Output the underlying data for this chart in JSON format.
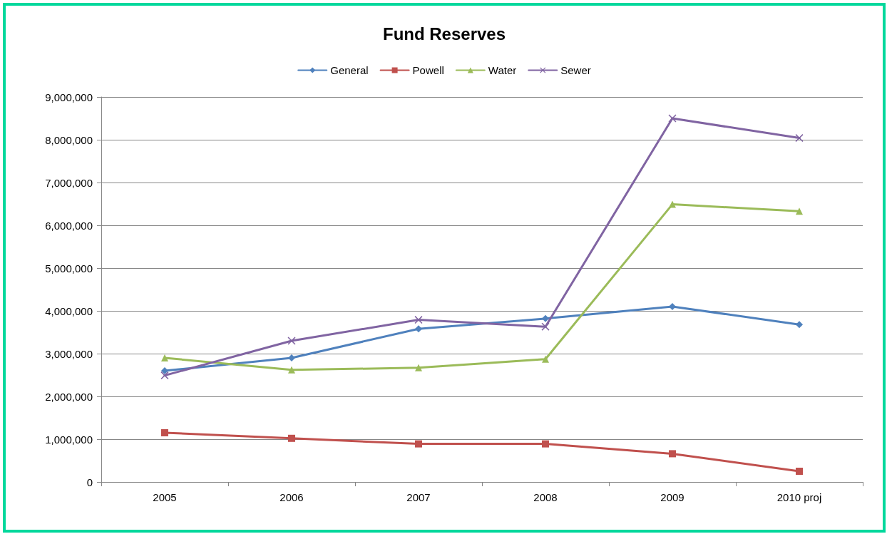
{
  "chart_data": {
    "type": "line",
    "title": "Fund Reserves",
    "categories": [
      "2005",
      "2006",
      "2007",
      "2008",
      "2009",
      "2010 proj"
    ],
    "series": [
      {
        "name": "General",
        "color": "#4f81bd",
        "marker": "diamond",
        "values": [
          2600000,
          2900000,
          3580000,
          3820000,
          4100000,
          3680000
        ]
      },
      {
        "name": "Powell",
        "color": "#c0504d",
        "marker": "square",
        "values": [
          1150000,
          1020000,
          890000,
          890000,
          660000,
          250000
        ]
      },
      {
        "name": "Water",
        "color": "#9bbb59",
        "marker": "triangle",
        "values": [
          2900000,
          2620000,
          2670000,
          2870000,
          6490000,
          6330000
        ]
      },
      {
        "name": "Sewer",
        "color": "#8064a2",
        "marker": "cross",
        "values": [
          2490000,
          3300000,
          3790000,
          3630000,
          8500000,
          8040000
        ]
      }
    ],
    "ylim": [
      0,
      9000000
    ],
    "yticks": [
      0,
      {
        "value": 1000000,
        "label": "1,000,000"
      },
      {
        "value": 2000000,
        "label": "2,000,000"
      },
      {
        "value": 3000000,
        "label": "3,000,000"
      },
      {
        "value": 4000000,
        "label": "4,000,000"
      },
      {
        "value": 5000000,
        "label": "5,000,000"
      },
      {
        "value": 6000000,
        "label": "6,000,000"
      },
      {
        "value": 7000000,
        "label": "7,000,000"
      },
      {
        "value": 8000000,
        "label": "8,000,000"
      },
      {
        "value": 9000000,
        "label": "9,000,000"
      }
    ],
    "grid": "y",
    "legend": "top",
    "line_style": "solid"
  }
}
